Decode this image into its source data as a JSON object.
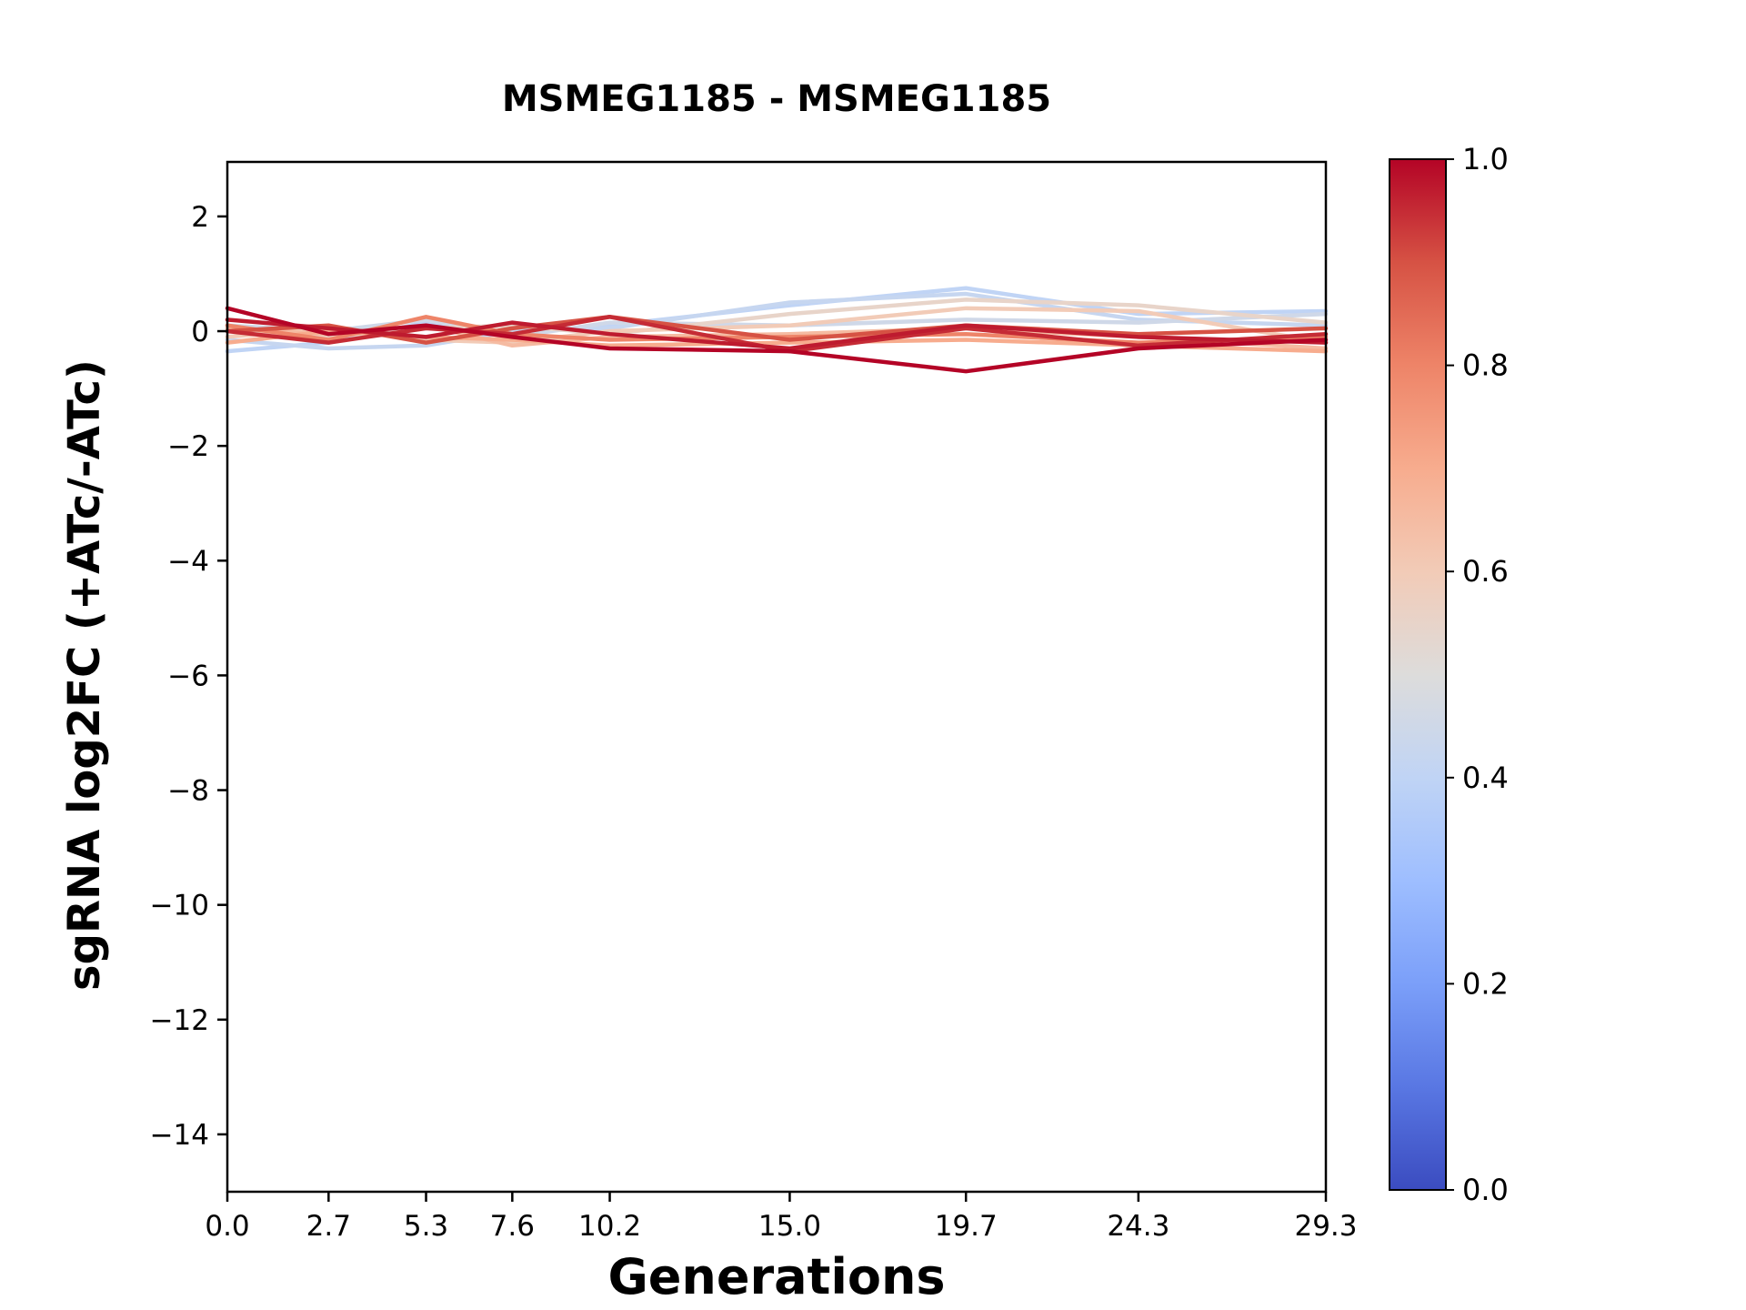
{
  "chart_data": {
    "type": "line",
    "title": "MSMEG1185 - MSMEG1185",
    "xlabel": "Generations",
    "ylabel": "sgRNA log2FC (+ATc/-ATc)",
    "x": [
      0.0,
      2.7,
      5.3,
      7.6,
      10.2,
      15.0,
      19.7,
      24.3,
      29.3
    ],
    "x_tick_labels": [
      "0.0",
      "2.7",
      "5.3",
      "7.6",
      "10.2",
      "15.0",
      "19.7",
      "24.3",
      "29.3"
    ],
    "y_tick_values": [
      2,
      0,
      -2,
      -4,
      -6,
      -8,
      -10,
      -12,
      -14
    ],
    "y_tick_labels": [
      "2",
      "0",
      "−2",
      "−4",
      "−6",
      "−8",
      "−10",
      "−12",
      "−14"
    ],
    "xlim": [
      0.0,
      29.3
    ],
    "ylim": [
      -15.0,
      2.95
    ],
    "grid": false,
    "colormap": "coolwarm",
    "colorbar": {
      "min": 0.0,
      "max": 1.0,
      "tick_values": [
        1.0,
        0.8,
        0.6,
        0.4,
        0.2,
        0.0
      ],
      "tick_labels": [
        "1.0",
        "0.8",
        "0.6",
        "0.4",
        "0.2",
        "0.0"
      ]
    },
    "series": [
      {
        "color_value": 0.4,
        "values": [
          -0.35,
          -0.2,
          0.15,
          -0.05,
          0.1,
          0.45,
          0.75,
          0.3,
          0.35
        ]
      },
      {
        "color_value": 0.42,
        "values": [
          -0.15,
          -0.3,
          -0.25,
          0.0,
          0.05,
          0.5,
          0.65,
          0.2,
          0.1
        ]
      },
      {
        "color_value": 0.45,
        "values": [
          0.1,
          0.0,
          0.2,
          -0.1,
          0.15,
          0.1,
          0.2,
          0.15,
          0.3
        ]
      },
      {
        "color_value": 0.55,
        "values": [
          0.0,
          -0.1,
          0.05,
          0.1,
          -0.05,
          0.3,
          0.55,
          0.45,
          0.15
        ]
      },
      {
        "color_value": 0.6,
        "values": [
          -0.1,
          0.05,
          -0.15,
          -0.2,
          0.0,
          0.1,
          0.4,
          0.35,
          -0.2
        ]
      },
      {
        "color_value": 0.65,
        "values": [
          0.05,
          -0.05,
          0.1,
          -0.25,
          -0.1,
          -0.05,
          0.05,
          -0.1,
          -0.3
        ]
      },
      {
        "color_value": 0.7,
        "values": [
          -0.2,
          0.0,
          -0.1,
          -0.15,
          -0.25,
          -0.2,
          -0.15,
          -0.25,
          -0.35
        ]
      },
      {
        "color_value": 0.8,
        "values": [
          0.1,
          -0.15,
          0.25,
          -0.05,
          -0.15,
          -0.1,
          -0.05,
          -0.2,
          -0.1
        ]
      },
      {
        "color_value": 0.9,
        "values": [
          0.0,
          0.1,
          -0.2,
          0.05,
          0.25,
          -0.15,
          0.1,
          -0.05,
          0.05
        ]
      },
      {
        "color_value": 0.95,
        "values": [
          0.0,
          -0.2,
          0.05,
          -0.05,
          0.25,
          -0.35,
          0.05,
          -0.25,
          -0.05
        ]
      },
      {
        "color_value": 0.97,
        "values": [
          0.2,
          0.05,
          -0.1,
          0.15,
          -0.05,
          -0.3,
          0.1,
          -0.1,
          -0.2
        ]
      },
      {
        "color_value": 1.0,
        "values": [
          0.4,
          -0.05,
          0.1,
          -0.1,
          -0.3,
          -0.35,
          -0.7,
          -0.3,
          -0.15
        ]
      }
    ]
  }
}
